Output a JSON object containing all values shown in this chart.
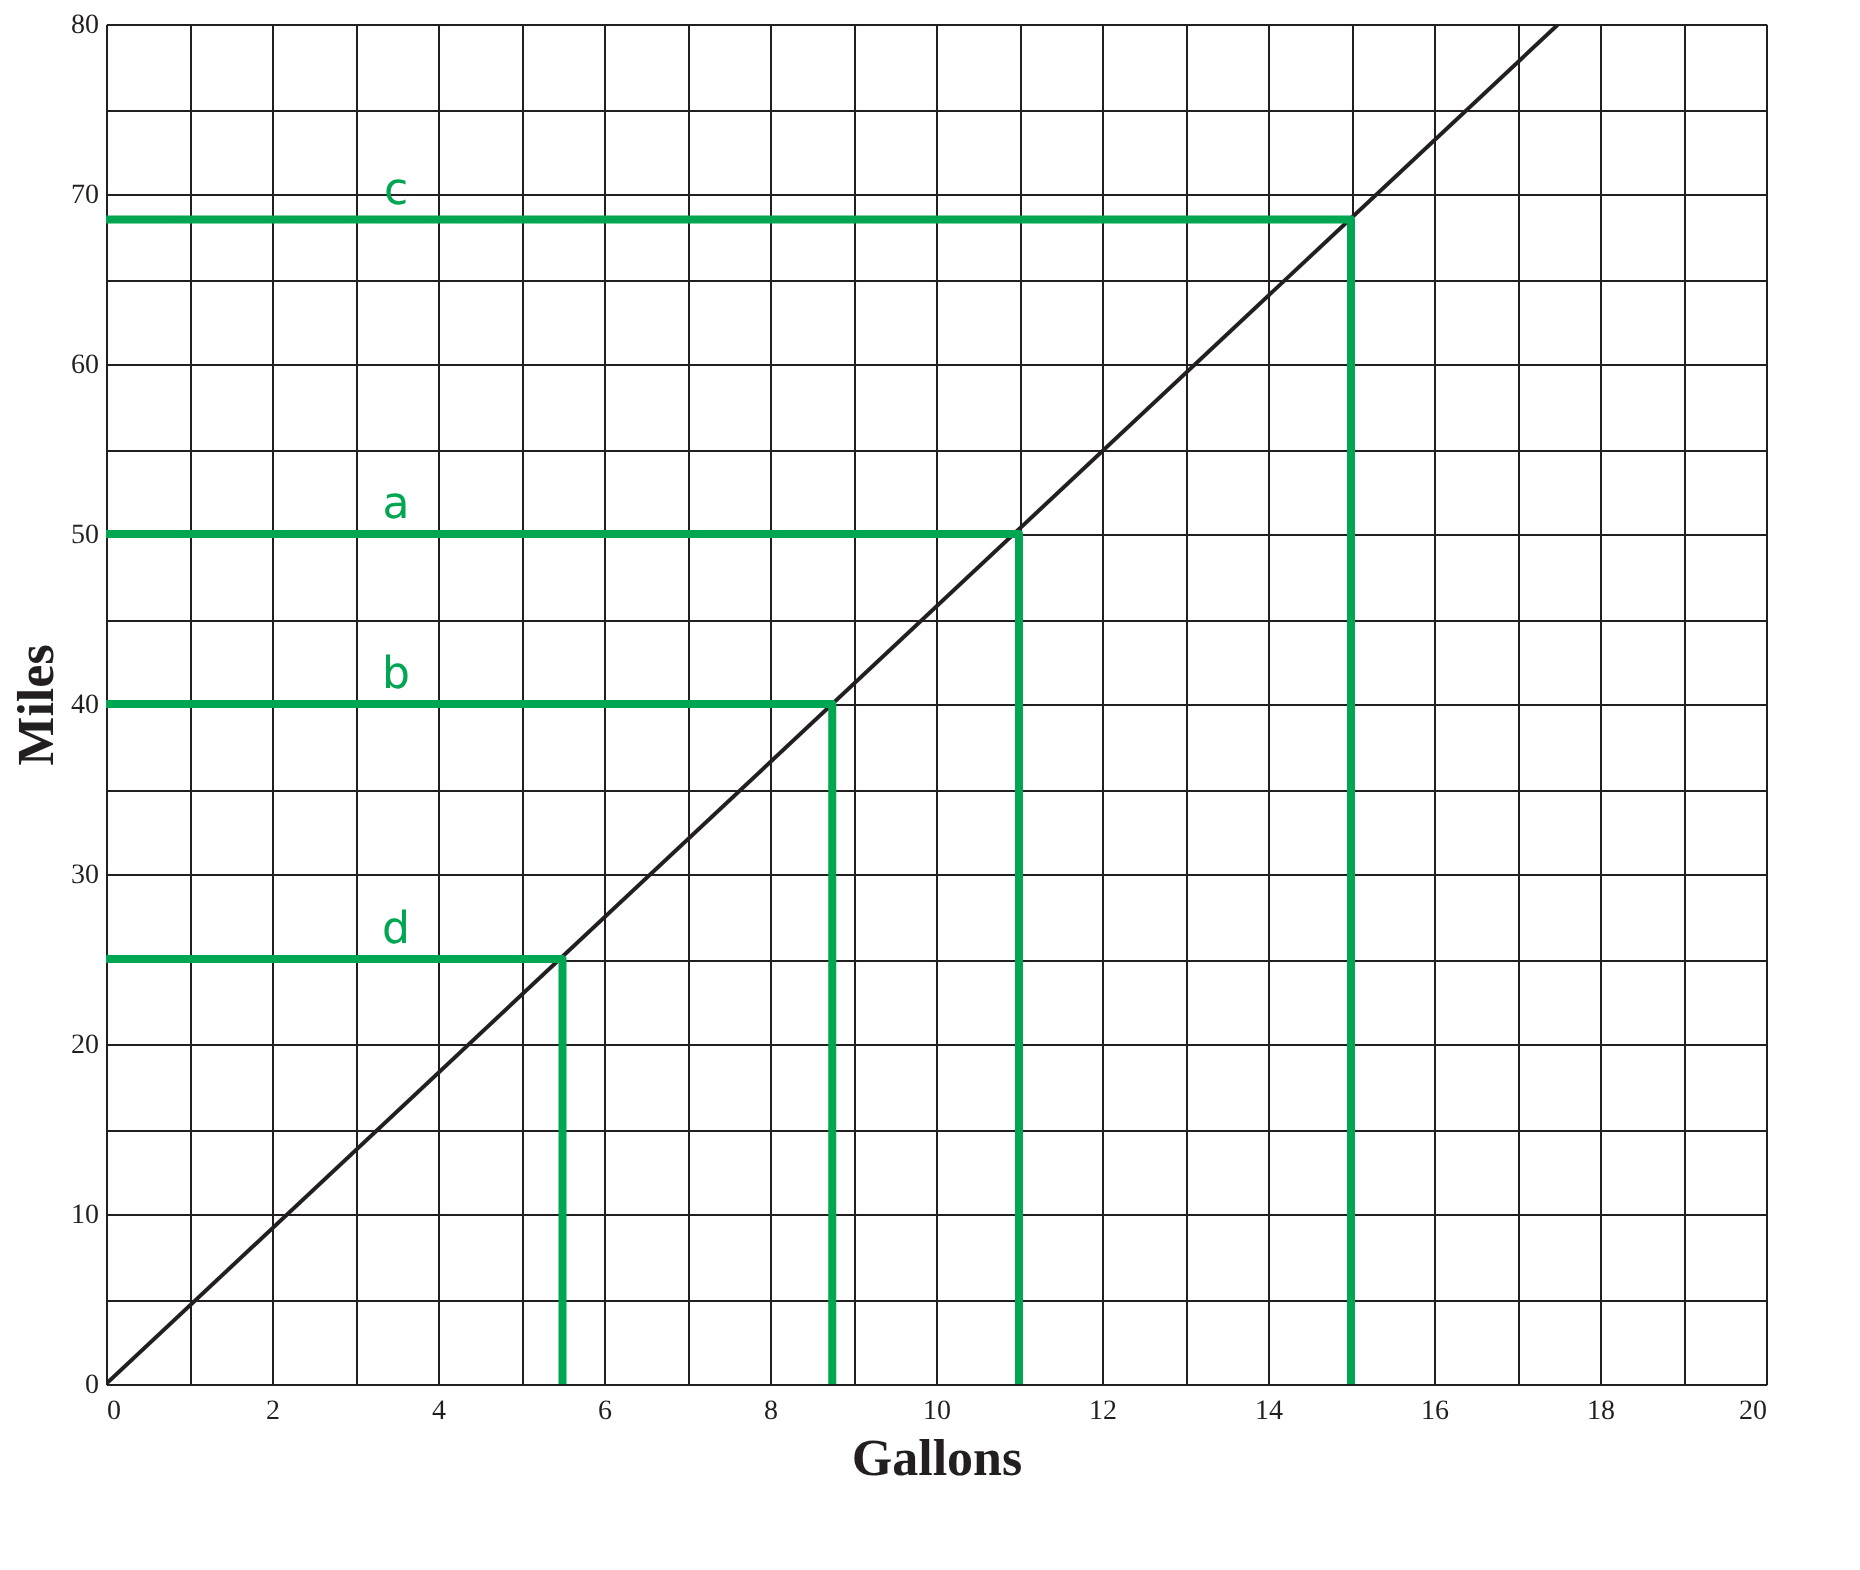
{
  "chart_data": {
    "type": "line",
    "xlabel": "Gallons",
    "ylabel": "Miles",
    "xlim": [
      0,
      20
    ],
    "ylim": [
      0,
      80
    ],
    "xticks": [
      0,
      {
        "value": 1,
        "label": null
      },
      2,
      {
        "value": 3,
        "label": null
      },
      4,
      {
        "value": 5,
        "label": null
      },
      6,
      {
        "value": 7,
        "label": null
      },
      8,
      {
        "value": 9,
        "label": null
      },
      10,
      {
        "value": 11,
        "label": null
      },
      12,
      {
        "value": 13,
        "label": null
      },
      14,
      {
        "value": 15,
        "label": null
      },
      16,
      {
        "value": 17,
        "label": null
      },
      18,
      {
        "value": 19,
        "label": null
      },
      20
    ],
    "yticks": [
      0,
      {
        "value": 5,
        "label": null
      },
      10,
      {
        "value": 15,
        "label": null
      },
      20,
      {
        "value": 25,
        "label": null
      },
      30,
      {
        "value": 35,
        "label": null
      },
      40,
      {
        "value": 45,
        "label": null
      },
      50,
      {
        "value": 55,
        "label": null
      },
      60,
      {
        "value": 65,
        "label": null
      },
      70,
      {
        "value": 75,
        "label": null
      },
      80
    ],
    "grid": true,
    "marker": "none",
    "line_style": "solid",
    "series": [
      {
        "color": "#231f20",
        "x": [
          0,
          17.5
        ],
        "values": [
          0,
          80
        ]
      },
      {
        "color": "#00a651",
        "x": [
          0,
          15,
          15
        ],
        "values": [
          68.5,
          68.5,
          0
        ]
      },
      {
        "color": "#00a651",
        "x": [
          0,
          11,
          11
        ],
        "values": [
          50,
          50,
          0
        ]
      },
      {
        "color": "#00a651",
        "x": [
          0,
          8.75,
          8.75
        ],
        "values": [
          40,
          40,
          0
        ]
      },
      {
        "color": "#00a651",
        "x": [
          0,
          5.5,
          5.5
        ],
        "values": [
          25,
          25,
          0
        ]
      }
    ],
    "annotations": [
      "c",
      "a",
      "b",
      "d"
    ]
  }
}
